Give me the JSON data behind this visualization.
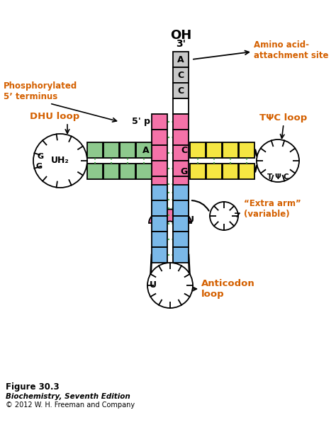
{
  "fig_label": "Figure 30.3",
  "fig_subtitle": "Biochemistry, Seventh Edition",
  "fig_copyright": "© 2012 W. H. Freeman and Company",
  "colors": {
    "pink": "#f472a8",
    "green": "#8dc98d",
    "blue": "#7ab8e8",
    "yellow": "#f5e642",
    "gray": "#c8c8c8",
    "white": "#ffffff",
    "black": "#000000",
    "dot_green": "#4caf50",
    "label_orange": "#d46000"
  },
  "labels": {
    "three_prime": "3'",
    "oh": "OH",
    "five_prime": "5' p",
    "amino_acid": "Amino acid-\nattachment site",
    "phosphorylated": "Phosphorylated\n5’ terminus",
    "dhu_loop": "DHU loop",
    "uh2": "UH₂",
    "tpsi_loop": "TΨC loop",
    "extra_arm": "“Extra arm”\n(variable)",
    "anticodon_loop": "Anticodon\nloop",
    "Psi": "Ψ"
  }
}
